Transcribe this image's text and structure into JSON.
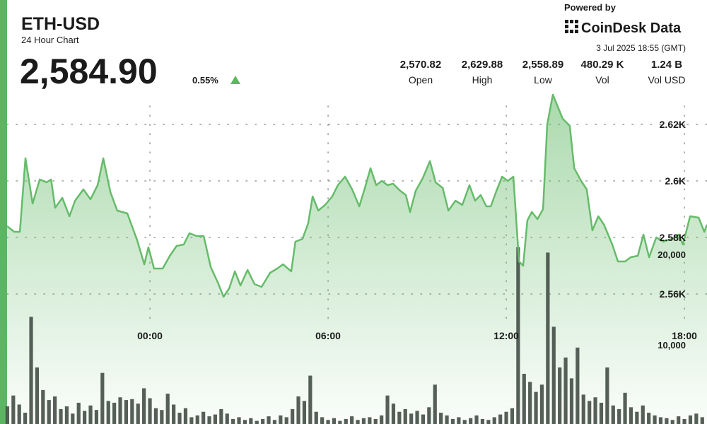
{
  "header": {
    "title": "ETH-USD",
    "subtitle": "24 Hour Chart",
    "price": "2,584.90",
    "change": "0.55%",
    "powered_by": "Powered by",
    "brand": "CoinDesk Data",
    "timestamp": "3 Jul 2025 18:55 (GMT)",
    "stats": [
      {
        "value": "2,570.82",
        "label": "Open"
      },
      {
        "value": "2,629.88",
        "label": "High"
      },
      {
        "value": "2,558.89",
        "label": "Low"
      },
      {
        "value": "480.29 K",
        "label": "Vol"
      },
      {
        "value": "1.24 B",
        "label": "Vol USD"
      }
    ]
  },
  "chart_data": {
    "type": "line",
    "x": [
      -4.81,
      -4.57,
      -4.38,
      -4.19,
      -3.95,
      -3.71,
      -3.48,
      -3.33,
      -3.19,
      -2.95,
      -2.71,
      -2.52,
      -2.24,
      -2.0,
      -1.76,
      -1.57,
      -1.33,
      -1.1,
      -0.76,
      -0.43,
      -0.19,
      -0.05,
      0.14,
      0.43,
      0.67,
      0.9,
      1.14,
      1.33,
      1.57,
      1.81,
      2.05,
      2.29,
      2.48,
      2.67,
      2.86,
      3.05,
      3.29,
      3.52,
      3.76,
      4.05,
      4.29,
      4.48,
      4.76,
      4.9,
      5.14,
      5.33,
      5.48,
      5.67,
      5.9,
      6.14,
      6.33,
      6.57,
      6.81,
      7.05,
      7.24,
      7.43,
      7.62,
      7.81,
      8.0,
      8.19,
      8.43,
      8.62,
      8.76,
      8.95,
      9.19,
      9.43,
      9.62,
      9.86,
      10.05,
      10.29,
      10.52,
      10.76,
      10.95,
      11.14,
      11.33,
      11.48,
      11.67,
      11.86,
      12.05,
      12.24,
      12.43,
      12.57,
      12.71,
      12.86,
      13.05,
      13.24,
      13.38,
      13.57,
      13.9,
      14.14,
      14.29,
      14.52,
      14.71,
      14.9,
      15.1,
      15.29,
      15.57,
      15.76,
      16.0,
      16.19,
      16.43,
      16.62,
      16.81,
      17.05,
      17.29,
      17.57,
      17.81,
      17.95,
      18.19,
      18.48,
      18.67,
      18.76
    ],
    "xlim": [
      -4.81,
      18.76
    ],
    "xticks": [
      {
        "value": 0,
        "label": "00:00"
      },
      {
        "value": 6,
        "label": "06:00"
      },
      {
        "value": 12,
        "label": "12:00"
      },
      {
        "value": 18,
        "label": "18:00"
      }
    ],
    "ylim": [
      2550,
      2640
    ],
    "yticks": [
      {
        "value": 2560,
        "label": "2.56K"
      },
      {
        "value": 2580,
        "label": "2.58K"
      },
      {
        "value": 2600,
        "label": "2.6K"
      },
      {
        "value": 2620,
        "label": "2.62K"
      }
    ],
    "y2lim": [
      1250,
      45000
    ],
    "y2ticks": [
      {
        "value": 10000,
        "label": "10,000"
      },
      {
        "value": 20000,
        "label": "20,000"
      }
    ],
    "grid": true,
    "series": [
      {
        "color": "#66bb6a",
        "values": [
          2584,
          2582,
          2582,
          2608,
          2592,
          2600.5,
          2599.5,
          2600.5,
          2590.5,
          2594,
          2587.5,
          2593,
          2597,
          2593.5,
          2598.5,
          2608,
          2596,
          2589.5,
          2588.5,
          2579,
          2570.5,
          2576.5,
          2569,
          2569,
          2573.5,
          2577,
          2577.5,
          2581.5,
          2580.5,
          2580.5,
          2569.5,
          2564,
          2559,
          2562,
          2568,
          2563,
          2568.5,
          2563.5,
          2562.5,
          2567.5,
          2569,
          2570.5,
          2568,
          2578.5,
          2579.5,
          2585,
          2594.5,
          2589.5,
          2591.5,
          2594.5,
          2598.5,
          2601.5,
          2597,
          2591,
          2597.5,
          2604.5,
          2598.5,
          2600,
          2598.5,
          2599,
          2596.5,
          2595,
          2589,
          2596.5,
          2601,
          2607,
          2599.5,
          2597.5,
          2589.5,
          2593,
          2591.5,
          2598.5,
          2593,
          2595,
          2591,
          2591,
          2596.5,
          2601.5,
          2600,
          2601.5,
          2571.5,
          2570,
          2586,
          2589,
          2586.5,
          2590,
          2620,
          2630.5,
          2622,
          2619.5,
          2604.5,
          2600,
          2597,
          2582.5,
          2587.5,
          2584.5,
          2577.5,
          2571.5,
          2571.5,
          2573,
          2573.5,
          2581,
          2573,
          2580,
          2578.5,
          2579.5,
          2581,
          2577.5,
          2587.5,
          2587,
          2582,
          2584.5
        ]
      },
      {
        "type": "bar",
        "axis": "y2",
        "color": "#47514a",
        "x": [
          -4.8,
          -4.6,
          -4.4,
          -4.2,
          -4.0,
          -3.8,
          -3.6,
          -3.4,
          -3.2,
          -3.0,
          -2.8,
          -2.6,
          -2.4,
          -2.2,
          -2.0,
          -1.8,
          -1.6,
          -1.4,
          -1.2,
          -1.0,
          -0.8,
          -0.6,
          -0.4,
          -0.2,
          0,
          0.2,
          0.4,
          0.6,
          0.8,
          1.0,
          1.2,
          1.4,
          1.6,
          1.8,
          2.0,
          2.2,
          2.4,
          2.6,
          2.8,
          3.0,
          3.2,
          3.4,
          3.6,
          3.8,
          4.0,
          4.2,
          4.4,
          4.6,
          4.8,
          5.0,
          5.2,
          5.4,
          5.6,
          5.8,
          6.0,
          6.2,
          6.4,
          6.6,
          6.8,
          7.0,
          7.2,
          7.4,
          7.6,
          7.8,
          8.0,
          8.2,
          8.4,
          8.6,
          8.8,
          9.0,
          9.2,
          9.4,
          9.6,
          9.8,
          10.0,
          10.2,
          10.4,
          10.6,
          10.8,
          11.0,
          11.2,
          11.4,
          11.6,
          11.8,
          12.0,
          12.2,
          12.4,
          12.6,
          12.8,
          13.0,
          13.2,
          13.4,
          13.6,
          13.8,
          14.0,
          14.2,
          14.4,
          14.6,
          14.8,
          15.0,
          15.2,
          15.4,
          15.6,
          15.8,
          16.0,
          16.2,
          16.4,
          16.6,
          16.8,
          17.0,
          17.2,
          17.4,
          17.6,
          17.8,
          18.0,
          18.2,
          18.4,
          18.6
        ],
        "values": [
          3200,
          4400,
          3400,
          2500,
          13100,
          7500,
          5000,
          3900,
          4300,
          2900,
          3200,
          2400,
          3600,
          2700,
          3300,
          2800,
          6900,
          3800,
          3600,
          4200,
          3900,
          4000,
          3500,
          5200,
          4100,
          3000,
          2800,
          4600,
          3400,
          2500,
          3000,
          2000,
          2200,
          2600,
          2100,
          2300,
          2900,
          2400,
          1800,
          2000,
          1700,
          1900,
          1600,
          1800,
          2100,
          1700,
          2200,
          2000,
          2900,
          4300,
          3800,
          6600,
          2600,
          2000,
          1700,
          1900,
          1600,
          1800,
          2100,
          1700,
          1900,
          2000,
          1800,
          2200,
          4400,
          3500,
          2600,
          2900,
          2400,
          2700,
          2300,
          3100,
          5600,
          2500,
          2200,
          1800,
          2000,
          1700,
          1900,
          2200,
          1800,
          1700,
          2000,
          2300,
          2600,
          3000,
          20800,
          6800,
          5900,
          4800,
          5600,
          20200,
          12000,
          7500,
          8600,
          6300,
          9700,
          4500,
          3800,
          4200,
          3600,
          7500,
          3300,
          2900,
          4700,
          3100,
          2600,
          3300,
          2500,
          2200,
          2000,
          1900,
          1700,
          2100,
          1800,
          2200,
          2400,
          2000
        ]
      }
    ]
  }
}
